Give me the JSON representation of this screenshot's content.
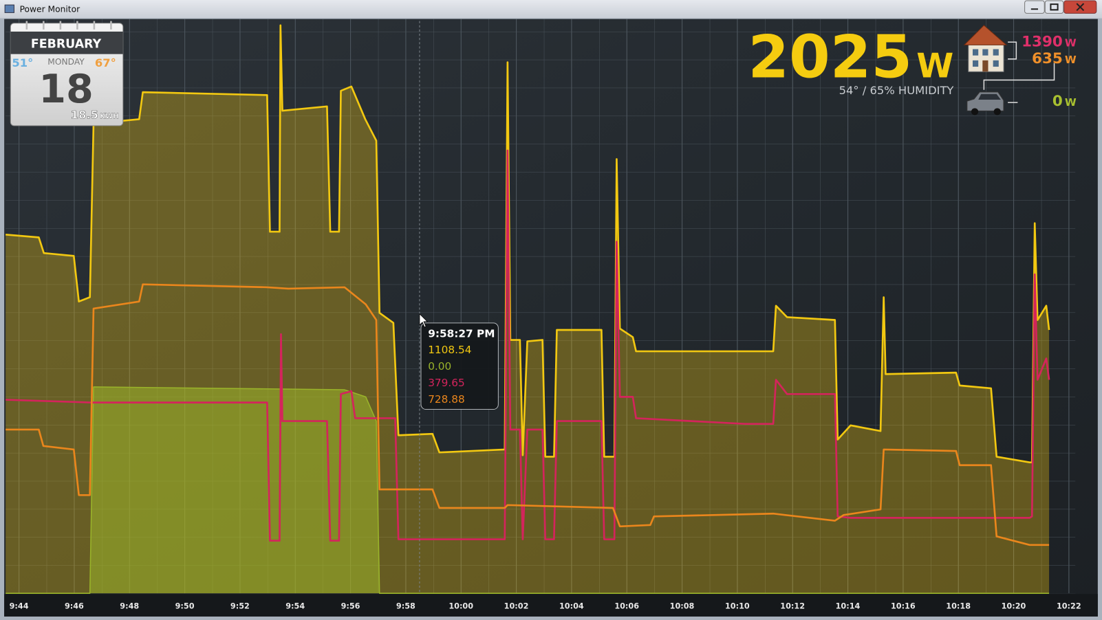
{
  "window": {
    "title": "Power Monitor"
  },
  "calendar": {
    "month": "FEBRUARY",
    "weekday": "MONDAY",
    "day": "18",
    "low": "51°",
    "high": "67°",
    "energy": "18.5",
    "energy_unit": "KWH"
  },
  "summary": {
    "total": "2025",
    "total_unit": "W",
    "weather": "54° / 65% HUMIDITY",
    "house_a": "1390",
    "house_a_unit": "W",
    "house_b": "635",
    "house_b_unit": "W",
    "car": "0",
    "car_unit": "W"
  },
  "chart_data": {
    "type": "line",
    "xlim": [
      "9:43:31",
      "10:22:14"
    ],
    "ylim": [
      0,
      4000
    ],
    "xticks": [
      "9:44",
      "9:46",
      "9:48",
      "9:50",
      "9:52",
      "9:54",
      "9:56",
      "9:58",
      "10:00",
      "10:02",
      "10:04",
      "10:06",
      "10:08",
      "10:10",
      "10:12",
      "10:14",
      "10:16",
      "10:18",
      "10:20",
      "10:22"
    ],
    "grid": true,
    "series": [
      {
        "color": "#f2c811",
        "area": true,
        "x": [
          "9:43:31",
          "9:44:43",
          "9:44:54",
          "9:45:59",
          "9:46:10",
          "9:46:34",
          "9:46:42",
          "9:48:21",
          "9:48:29",
          "9:52:59",
          "9:53:05",
          "9:53:26",
          "9:53:28",
          "9:53:32",
          "9:55:09",
          "9:55:16",
          "9:55:35",
          "9:55:39",
          "9:56:02",
          "9:56:32",
          "9:56:56",
          "9:57:03",
          "9:57:33",
          "9:57:44",
          "9:58:58",
          "9:59:13",
          "10:01:35",
          "10:01:41",
          "10:01:47",
          "10:02:08",
          "10:02:14",
          "10:02:24",
          "10:02:57",
          "10:03:03",
          "10:03:22",
          "10:03:28",
          "10:05:05",
          "10:05:11",
          "10:05:33",
          "10:05:38",
          "10:05:45",
          "10:06:13",
          "10:06:20",
          "10:11:18",
          "10:11:24",
          "10:11:48",
          "10:13:32",
          "10:13:38",
          "10:14:06",
          "10:15:11",
          "10:15:18",
          "10:15:22",
          "10:17:55",
          "10:18:03",
          "10:19:11",
          "10:19:23",
          "10:20:35",
          "10:20:40",
          "10:20:46",
          "10:20:52",
          "10:21:11",
          "10:21:17"
        ],
        "values": [
          2520,
          2500,
          2390,
          2370,
          2050,
          2080,
          3300,
          3330,
          3520,
          3500,
          2540,
          2540,
          3990,
          3390,
          3420,
          2540,
          2540,
          3530,
          3560,
          3330,
          3180,
          1970,
          1900,
          1110,
          1120,
          990,
          1010,
          3730,
          1780,
          1780,
          970,
          1770,
          1780,
          960,
          960,
          1850,
          1850,
          960,
          960,
          3050,
          1860,
          1800,
          1700,
          1700,
          2020,
          1940,
          1920,
          1080,
          1180,
          1140,
          2080,
          1540,
          1550,
          1460,
          1440,
          960,
          920,
          920,
          2600,
          1920,
          2020,
          1850
        ]
      },
      {
        "color": "#9ab42a",
        "area": true,
        "x": [
          "9:43:31",
          "9:46:34",
          "9:46:42",
          "9:55:47",
          "9:56:33",
          "9:56:56",
          "9:57:03",
          "10:21:17"
        ],
        "values": [
          0,
          0,
          1450,
          1430,
          1380,
          1210,
          0,
          0
        ]
      },
      {
        "color": "#d4245c",
        "area": false,
        "x": [
          "9:43:31",
          "9:46:37",
          "9:52:59",
          "9:53:05",
          "9:53:26",
          "9:53:29",
          "9:53:32",
          "9:55:09",
          "9:55:16",
          "9:55:35",
          "9:55:39",
          "9:56:02",
          "9:56:10",
          "9:57:37",
          "9:57:44",
          "10:01:35",
          "10:01:41",
          "10:01:47",
          "10:02:08",
          "10:02:14",
          "10:02:24",
          "10:02:57",
          "10:03:03",
          "10:03:22",
          "10:03:28",
          "10:05:05",
          "10:05:11",
          "10:05:33",
          "10:05:38",
          "10:05:45",
          "10:06:13",
          "10:06:20",
          "10:10:17",
          "10:11:18",
          "10:11:24",
          "10:11:48",
          "10:13:32",
          "10:13:38",
          "10:14:06",
          "10:20:35",
          "10:20:40",
          "10:20:46",
          "10:20:52",
          "10:21:11",
          "10:21:17"
        ],
        "values": [
          1360,
          1340,
          1340,
          370,
          370,
          1820,
          1210,
          1210,
          370,
          370,
          1400,
          1420,
          1230,
          1230,
          380,
          380,
          3110,
          1150,
          1150,
          380,
          1150,
          1150,
          380,
          380,
          1210,
          1210,
          380,
          380,
          2470,
          1380,
          1380,
          1230,
          1190,
          1190,
          1500,
          1400,
          1400,
          540,
          530,
          530,
          540,
          2240,
          1500,
          1650,
          1500
        ]
      },
      {
        "color": "#ea861c",
        "area": false,
        "x": [
          "9:43:31",
          "9:44:43",
          "9:44:53",
          "9:45:59",
          "9:46:10",
          "9:46:34",
          "9:46:42",
          "9:48:21",
          "9:48:29",
          "9:52:59",
          "9:53:45",
          "9:55:47",
          "9:56:33",
          "9:56:56",
          "9:57:03",
          "9:58:58",
          "9:59:13",
          "10:01:35",
          "10:01:41",
          "10:05:30",
          "10:05:45",
          "10:06:51",
          "10:06:59",
          "10:11:18",
          "10:13:32",
          "10:13:51",
          "10:15:11",
          "10:15:18",
          "10:17:55",
          "10:18:03",
          "10:19:11",
          "10:19:23",
          "10:20:35",
          "10:21:17"
        ],
        "values": [
          1150,
          1150,
          1035,
          1010,
          690,
          690,
          2000,
          2050,
          2170,
          2150,
          2140,
          2150,
          2030,
          1920,
          730,
          730,
          600,
          600,
          620,
          600,
          470,
          480,
          540,
          560,
          510,
          550,
          590,
          1010,
          1000,
          900,
          900,
          400,
          340,
          340
        ]
      }
    ],
    "tooltip": {
      "title": "9:58:27 PM",
      "lines": [
        "1108.54",
        "0.00",
        "379.65",
        "728.88"
      ]
    }
  }
}
